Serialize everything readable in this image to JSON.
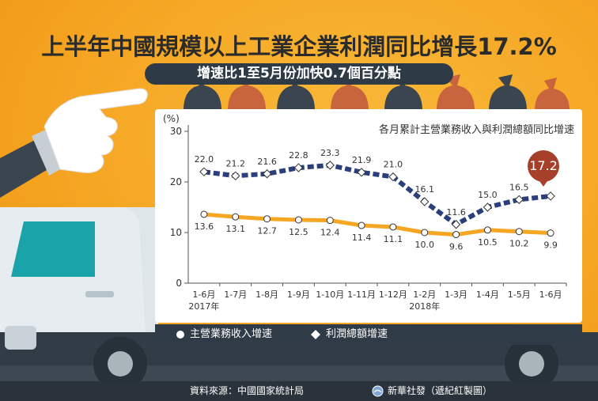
{
  "header": {
    "title": "上半年中國規模以上工業企業利潤同比增長17.2%",
    "subtitle": "增速比1至5月份加快0.7個百分點"
  },
  "chart_data": {
    "type": "line",
    "title": "各月累計主營業務收入與利潤總額同比增速",
    "ylabel": "(%)",
    "ylim": [
      0,
      30
    ],
    "yticks": [
      0,
      10,
      20,
      30
    ],
    "categories": [
      "1-6月",
      "1-7月",
      "1-8月",
      "1-9月",
      "1-10月",
      "1-11月",
      "1-12月",
      "1-2月",
      "1-3月",
      "1-4月",
      "1-5月",
      "1-6月"
    ],
    "year_labels": [
      {
        "text": "2017年",
        "index": 0
      },
      {
        "text": "2018年",
        "index": 7
      }
    ],
    "series": [
      {
        "name": "主營業務收入增速",
        "color": "#f5a623",
        "marker": "circle",
        "values": [
          13.6,
          13.1,
          12.7,
          12.5,
          12.4,
          11.4,
          11.1,
          10.0,
          9.6,
          10.5,
          10.2,
          9.9
        ],
        "labels": [
          "13.6",
          "13.1",
          "12.7",
          "12.5",
          "12.4",
          "11.4",
          "11.1",
          "10.0",
          "9.6",
          "10.5",
          "10.2",
          "9.9"
        ]
      },
      {
        "name": "利潤總額增速",
        "color": "#2b3f7a",
        "marker": "diamond",
        "values": [
          22.0,
          21.2,
          21.6,
          22.8,
          23.3,
          21.9,
          21.0,
          16.1,
          11.6,
          15.0,
          16.5,
          17.2
        ],
        "labels": [
          "22.0",
          "21.2",
          "21.6",
          "22.8",
          "23.3",
          "21.9",
          "21.0",
          "16.1",
          "11.6",
          "15.0",
          "16.5",
          ""
        ]
      }
    ],
    "highlight": {
      "value": "17.2",
      "color": "#a6402b"
    }
  },
  "legend": {
    "items": [
      {
        "label": "主營業務收入增速",
        "marker": "circle"
      },
      {
        "label": "利潤總額增速",
        "marker": "diamond"
      }
    ]
  },
  "footer": {
    "source": "資料來源：中國國家統計局",
    "credit": "新華社發（遞紀紅製圖）"
  }
}
